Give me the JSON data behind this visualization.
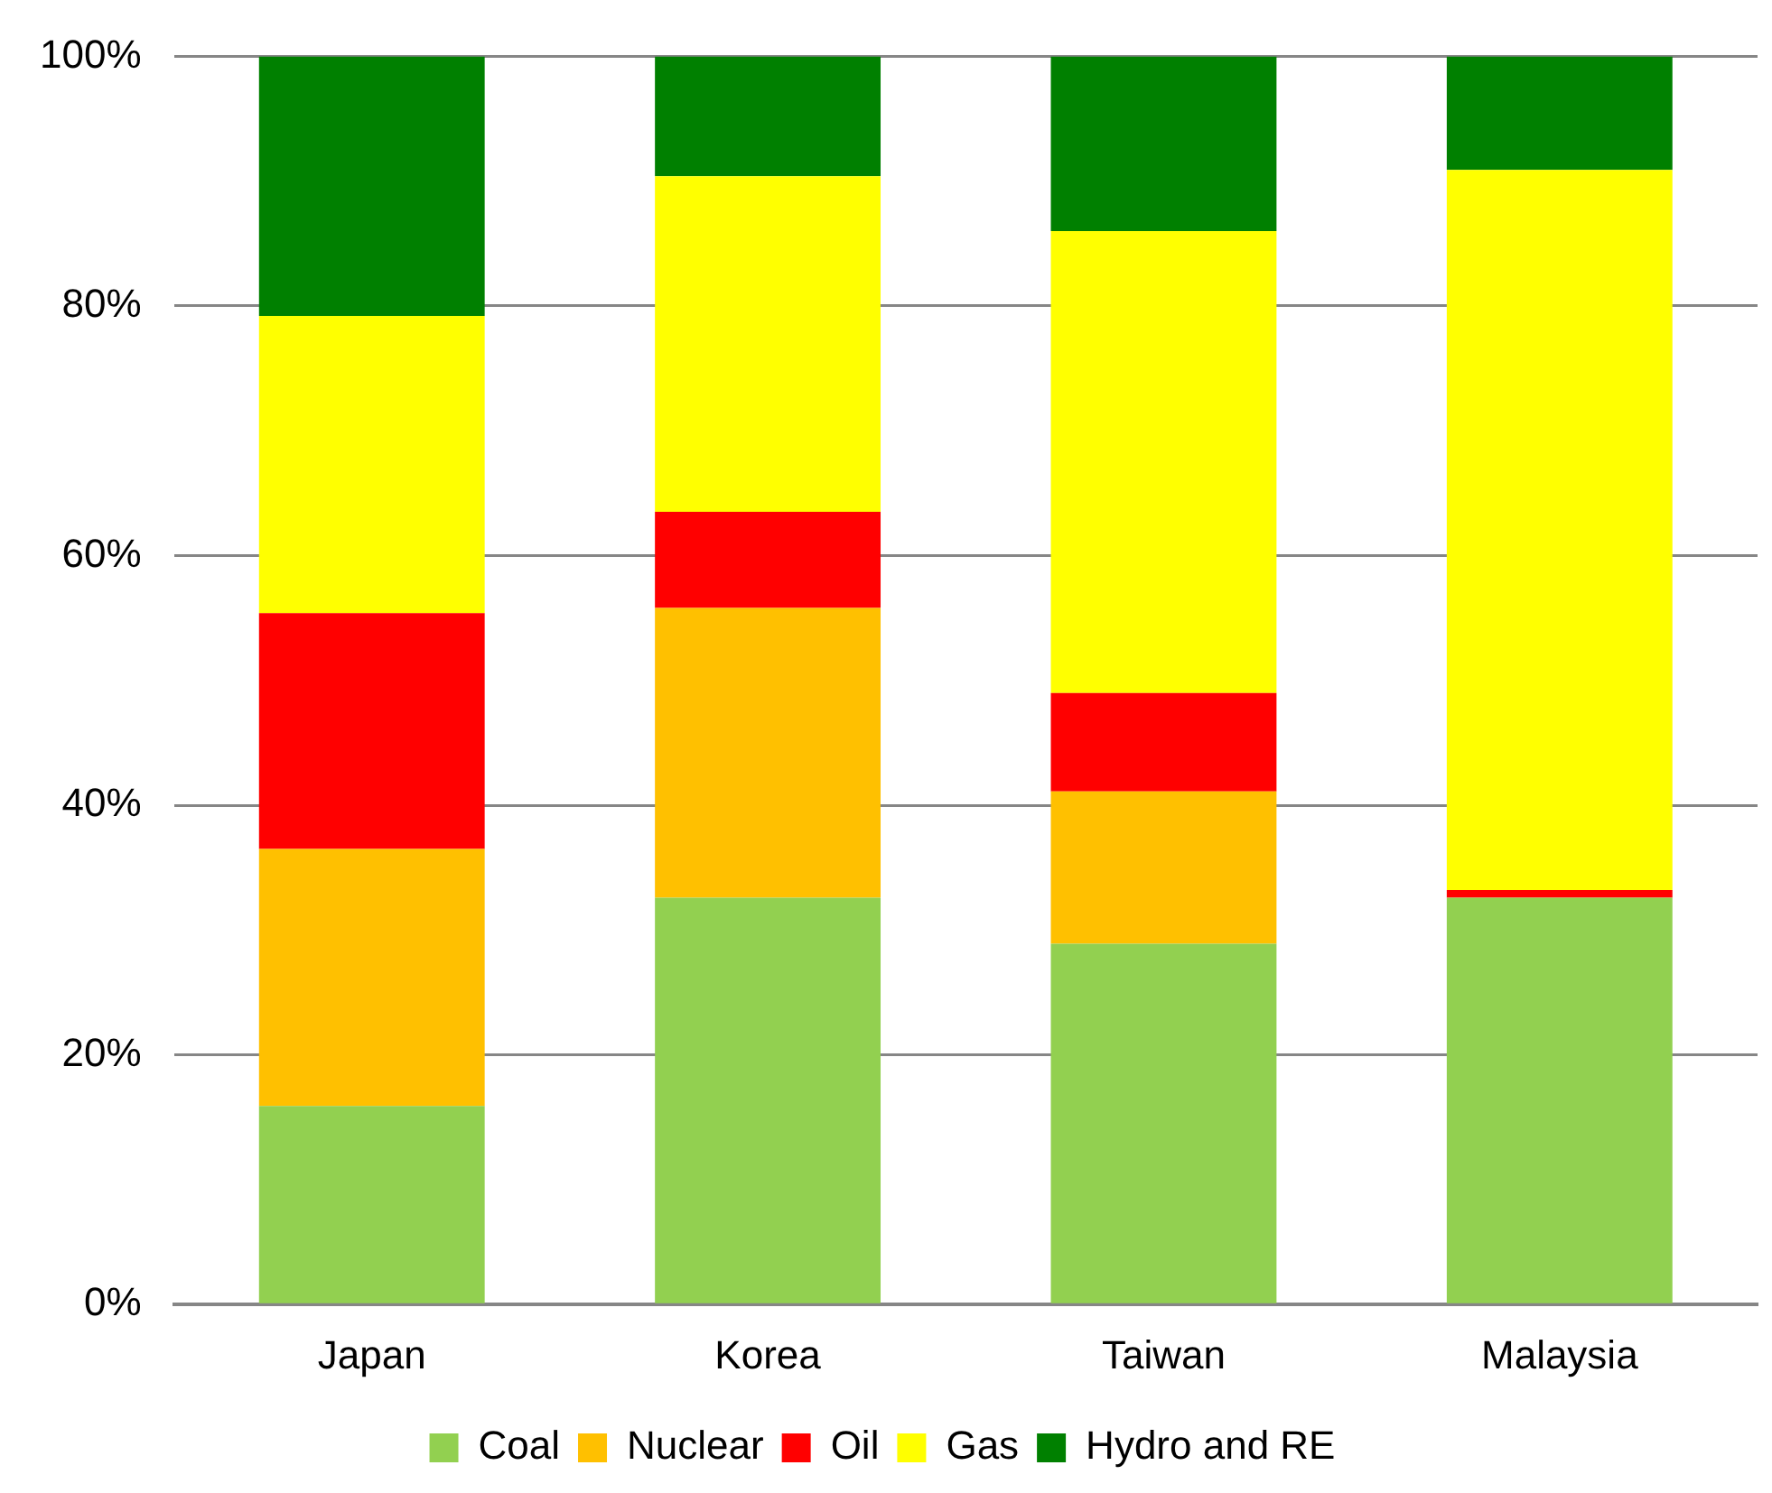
{
  "chart_data": {
    "type": "bar",
    "stacked": true,
    "categories": [
      "Japan",
      "Korea",
      "Taiwan",
      "Malaysia"
    ],
    "series": [
      {
        "name": "Coal",
        "color": "#92d050",
        "values": [
          15.9,
          32.6,
          28.9,
          32.6
        ]
      },
      {
        "name": "Nuclear",
        "color": "#ffc000",
        "values": [
          20.6,
          23.2,
          12.2,
          0
        ]
      },
      {
        "name": "Oil",
        "color": "#ff0000",
        "values": [
          18.9,
          7.7,
          7.9,
          0.6
        ]
      },
      {
        "name": "Gas",
        "color": "#ffff00",
        "values": [
          23.8,
          26.9,
          37.0,
          57.7
        ]
      },
      {
        "name": "Hydro and RE",
        "color": "#008000",
        "values": [
          20.8,
          9.6,
          14.0,
          9.1
        ]
      }
    ],
    "ylim": [
      0,
      100
    ],
    "yticks": [
      {
        "value": 0,
        "label": "0%"
      },
      {
        "value": 20,
        "label": "20%"
      },
      {
        "value": 40,
        "label": "40%"
      },
      {
        "value": 60,
        "label": "60%"
      },
      {
        "value": 80,
        "label": "80%"
      },
      {
        "value": 100,
        "label": "100%"
      }
    ],
    "grid": "y",
    "legend": "bottom"
  }
}
